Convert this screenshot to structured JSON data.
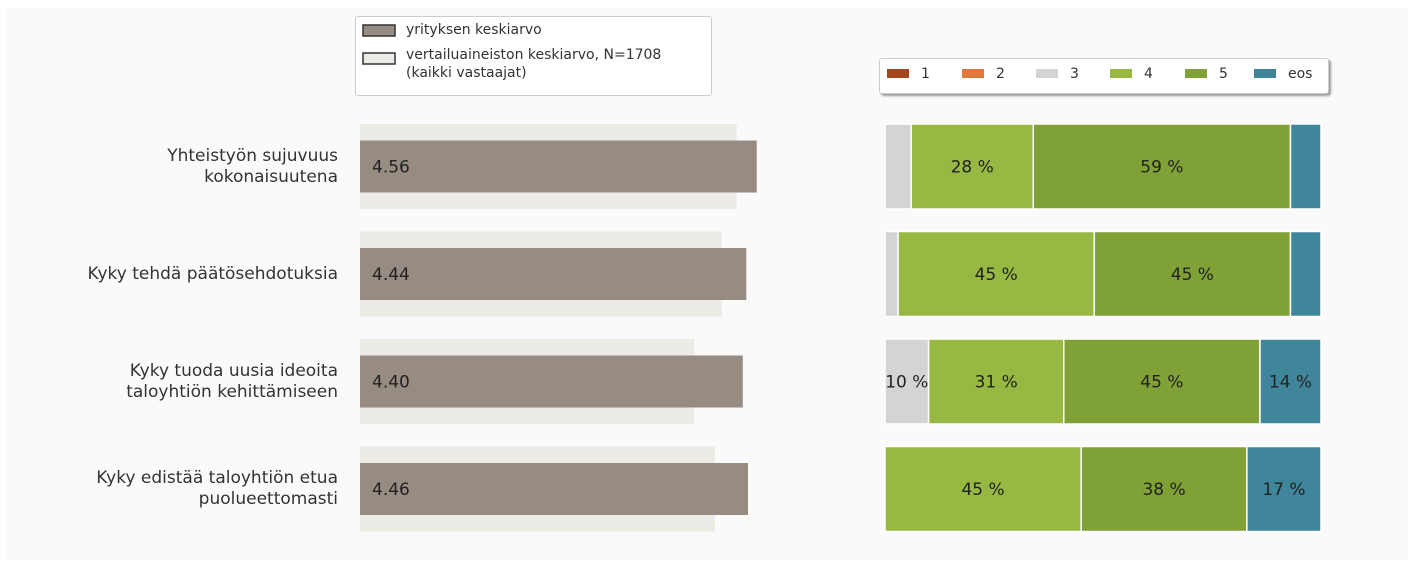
{
  "chart_data": [
    {
      "type": "hbar",
      "categories": [
        "Yhteistyön sujuvuus\nkokonaisuutena",
        "Kyky tehdä päätösehdotuksia",
        "Kyky tuoda uusia ideoita\ntaloyhtiön kehittämiseen",
        "Kyky edistää taloyhtiön etua\npuolueettomasti"
      ],
      "xlim": [
        0,
        5
      ],
      "series": [
        {
          "name": "yrityksen keskiarvo",
          "color": "#978c82",
          "values": [
            4.56,
            4.44,
            4.4,
            4.46
          ],
          "value_labels": [
            "4.56",
            "4.44",
            "4.40",
            "4.46"
          ]
        },
        {
          "name": "vertailuaineiston keskiarvo, N=1708\n(kaikki vastaajat)",
          "color": "#edebe5",
          "values": [
            4.33,
            4.16,
            3.84,
            4.08
          ]
        }
      ]
    },
    {
      "type": "stacked_hbar",
      "xlim": [
        0,
        100
      ],
      "series": [
        {
          "name": "1",
          "color": "#a3461b",
          "values": [
            0,
            0,
            0,
            0
          ]
        },
        {
          "name": "2",
          "color": "#e0793a",
          "values": [
            0,
            0,
            0,
            0
          ]
        },
        {
          "name": "3",
          "color": "#d4d4d4",
          "values": [
            6,
            3,
            10,
            0
          ],
          "value_labels": [
            null,
            null,
            "10 %",
            null
          ]
        },
        {
          "name": "4",
          "color": "#97b843",
          "values": [
            28,
            45,
            31,
            45
          ],
          "value_labels": [
            "28 %",
            "45 %",
            "31 %",
            "45 %"
          ]
        },
        {
          "name": "5",
          "color": "#7fa136",
          "values": [
            59,
            45,
            45,
            38
          ],
          "value_labels": [
            "59 %",
            "45 %",
            "45 %",
            "38 %"
          ]
        },
        {
          "name": "eos",
          "color": "#40869a",
          "values": [
            7,
            7,
            14,
            17
          ],
          "value_labels": [
            null,
            null,
            "14 %",
            "17 %"
          ]
        }
      ]
    }
  ]
}
